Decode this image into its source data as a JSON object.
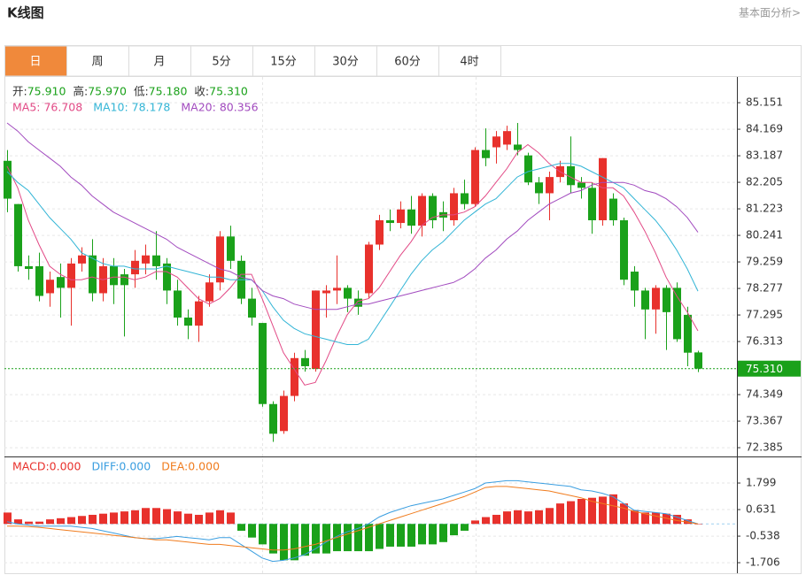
{
  "header": {
    "title": "K线图",
    "link": "基本面分析>"
  },
  "tabs": [
    "日",
    "周",
    "月",
    "5分",
    "15分",
    "30分",
    "60分",
    "4时"
  ],
  "active_tab": 0,
  "chart_data": [
    {
      "type": "candlestick",
      "up_color": "#e8312c",
      "down_color": "#1aa11a",
      "ohlc_labels": [
        {
          "label": "开:",
          "value": "75.910"
        },
        {
          "label": "高:",
          "value": "75.970"
        },
        {
          "label": "低:",
          "value": "75.180"
        },
        {
          "label": "收:",
          "value": "75.310"
        }
      ],
      "open": [
        83.0,
        81.4,
        79.1,
        79.1,
        78.1,
        78.7,
        78.3,
        79.2,
        79.5,
        78.1,
        79.1,
        78.8,
        78.8,
        79.2,
        79.5,
        79.2,
        78.2,
        77.2,
        76.9,
        77.8,
        78.5,
        80.2,
        79.3,
        77.9,
        77.0,
        74.0,
        73.0,
        74.3,
        75.7,
        75.3,
        78.1,
        78.2,
        78.3,
        77.9,
        78.1,
        79.9,
        80.8,
        80.7,
        81.2,
        80.6,
        81.7,
        81.1,
        80.8,
        81.8,
        81.4,
        83.4,
        83.5,
        83.6,
        83.6,
        83.2,
        82.2,
        81.8,
        82.4,
        82.8,
        82.2,
        82.0,
        80.8,
        81.6,
        80.8,
        78.9,
        78.2,
        77.5,
        78.3,
        78.3,
        77.3,
        75.91
      ],
      "high": [
        83.4,
        81.4,
        79.5,
        79.6,
        78.9,
        79.2,
        79.4,
        79.8,
        80.1,
        79.4,
        79.4,
        79.0,
        79.7,
        79.9,
        80.4,
        79.4,
        78.6,
        77.5,
        78.0,
        78.8,
        80.4,
        80.6,
        79.5,
        78.3,
        77.0,
        74.1,
        74.5,
        75.9,
        76.0,
        78.2,
        78.4,
        79.5,
        78.4,
        78.2,
        80.0,
        81.0,
        81.2,
        81.5,
        81.7,
        81.8,
        81.8,
        81.5,
        82.0,
        82.3,
        83.5,
        84.2,
        84.1,
        84.3,
        84.4,
        83.3,
        82.4,
        82.6,
        83.0,
        83.9,
        82.4,
        82.2,
        83.1,
        81.8,
        80.9,
        79.1,
        78.3,
        78.4,
        78.4,
        78.5,
        77.6,
        75.97
      ],
      "low": [
        81.1,
        78.9,
        78.6,
        77.8,
        77.6,
        77.2,
        76.9,
        78.9,
        77.8,
        77.8,
        77.7,
        76.5,
        78.3,
        78.8,
        78.6,
        77.7,
        76.9,
        76.4,
        76.3,
        77.6,
        78.2,
        79.0,
        77.7,
        76.9,
        73.9,
        72.6,
        72.9,
        74.1,
        75.2,
        75.2,
        77.2,
        77.7,
        77.4,
        77.3,
        77.9,
        79.7,
        80.4,
        80.5,
        80.3,
        80.2,
        80.5,
        80.4,
        80.6,
        81.2,
        81.3,
        82.8,
        82.9,
        83.4,
        83.2,
        82.1,
        81.4,
        80.8,
        82.2,
        81.8,
        81.6,
        80.3,
        80.6,
        80.6,
        78.4,
        77.6,
        76.4,
        76.6,
        76.0,
        76.3,
        75.4,
        75.18
      ],
      "close": [
        81.6,
        79.1,
        79.0,
        78.0,
        78.6,
        78.3,
        79.2,
        79.5,
        78.1,
        79.1,
        78.4,
        78.4,
        79.3,
        79.5,
        79.1,
        78.2,
        77.2,
        76.9,
        77.8,
        78.5,
        80.2,
        79.3,
        77.9,
        77.2,
        74.0,
        72.9,
        74.3,
        75.7,
        75.4,
        78.2,
        78.2,
        78.3,
        77.9,
        77.6,
        79.9,
        80.8,
        80.7,
        81.2,
        80.6,
        81.7,
        80.8,
        80.9,
        81.8,
        81.4,
        83.4,
        83.1,
        83.9,
        84.1,
        83.4,
        82.2,
        81.8,
        82.4,
        82.8,
        82.1,
        82.0,
        80.8,
        83.1,
        80.8,
        78.6,
        78.2,
        77.5,
        78.3,
        77.4,
        76.4,
        75.9,
        75.31
      ],
      "ma": [
        {
          "legend": "MA5: 76.708",
          "color": "#e24a86",
          "values": [
            82.8,
            82.0,
            80.8,
            79.9,
            79.1,
            78.8,
            78.6,
            78.6,
            78.7,
            78.6,
            78.7,
            78.7,
            78.6,
            78.7,
            78.9,
            78.9,
            78.7,
            78.3,
            77.9,
            77.7,
            77.9,
            78.3,
            78.8,
            78.8,
            77.9,
            76.9,
            75.9,
            75.3,
            74.7,
            74.8,
            75.6,
            76.5,
            77.3,
            77.8,
            77.9,
            78.3,
            78.9,
            79.5,
            80.0,
            80.6,
            80.9,
            81.0,
            81.0,
            81.1,
            81.3,
            81.7,
            82.2,
            82.7,
            83.3,
            83.6,
            83.3,
            82.9,
            82.6,
            82.4,
            82.2,
            82.2,
            82.0,
            82.0,
            81.7,
            81.1,
            80.4,
            79.6,
            78.7,
            78.0,
            77.4,
            76.708
          ]
        },
        {
          "legend": "MA10: 78.178",
          "color": "#33b5d6",
          "values": [
            82.6,
            82.2,
            81.9,
            81.4,
            80.9,
            80.5,
            80.1,
            79.6,
            79.4,
            79.2,
            79.1,
            79.1,
            79.0,
            79.0,
            79.0,
            79.1,
            79.0,
            78.9,
            78.8,
            78.7,
            78.7,
            78.6,
            78.6,
            78.6,
            78.2,
            77.6,
            77.1,
            76.8,
            76.6,
            76.5,
            76.4,
            76.3,
            76.2,
            76.2,
            76.4,
            77.0,
            77.6,
            78.2,
            78.8,
            79.3,
            79.7,
            80.0,
            80.4,
            80.8,
            81.1,
            81.4,
            81.6,
            82.0,
            82.4,
            82.6,
            82.7,
            82.8,
            82.9,
            82.9,
            82.8,
            82.6,
            82.4,
            82.2,
            82.0,
            81.6,
            81.2,
            80.8,
            80.3,
            79.7,
            79.0,
            78.178
          ]
        },
        {
          "legend": "MA20: 80.356",
          "color": "#a24bbf",
          "values": [
            84.4,
            84.1,
            83.7,
            83.4,
            83.1,
            82.8,
            82.4,
            82.1,
            81.7,
            81.4,
            81.1,
            80.9,
            80.7,
            80.5,
            80.3,
            80.1,
            79.8,
            79.6,
            79.4,
            79.2,
            79.0,
            78.9,
            78.7,
            78.6,
            78.2,
            78.0,
            77.9,
            77.7,
            77.6,
            77.5,
            77.5,
            77.5,
            77.6,
            77.7,
            77.7,
            77.8,
            77.9,
            78.0,
            78.1,
            78.2,
            78.3,
            78.4,
            78.5,
            78.7,
            79.0,
            79.4,
            79.7,
            80.1,
            80.4,
            80.8,
            81.1,
            81.4,
            81.6,
            81.8,
            81.9,
            82.1,
            82.2,
            82.2,
            82.2,
            82.1,
            81.9,
            81.8,
            81.6,
            81.3,
            80.9,
            80.356
          ]
        }
      ],
      "last_price": {
        "value": 75.31,
        "label": "75.310"
      },
      "last_color": "#1aa11a",
      "ylim": [
        72.06,
        86.07
      ],
      "yticks": [
        85.151,
        84.169,
        83.187,
        82.205,
        81.223,
        80.241,
        79.259,
        78.277,
        77.295,
        76.313,
        74.349,
        73.367,
        72.385
      ],
      "grid": true
    },
    {
      "type": "macd",
      "up_color": "#e8312c",
      "down_color": "#1aa11a",
      "histogram": {
        "legend": "MACD:0.000",
        "color": "#e8312c",
        "values": [
          0.5,
          0.2,
          0.1,
          0.1,
          0.2,
          0.25,
          0.3,
          0.35,
          0.4,
          0.45,
          0.5,
          0.55,
          0.6,
          0.7,
          0.7,
          0.65,
          0.55,
          0.45,
          0.4,
          0.5,
          0.6,
          0.5,
          -0.3,
          -0.6,
          -0.9,
          -1.3,
          -1.6,
          -1.6,
          -1.4,
          -1.3,
          -1.3,
          -1.2,
          -1.2,
          -1.2,
          -1.2,
          -1.1,
          -1.0,
          -1.0,
          -1.0,
          -0.9,
          -0.9,
          -0.8,
          -0.5,
          -0.3,
          0.15,
          0.3,
          0.4,
          0.55,
          0.6,
          0.55,
          0.6,
          0.7,
          0.9,
          1.0,
          1.1,
          1.15,
          1.2,
          1.3,
          0.9,
          0.6,
          0.5,
          0.5,
          0.45,
          0.4,
          0.2,
          0
        ]
      },
      "series": [
        {
          "legend": "DIFF:0.000",
          "color": "#3a9ee0",
          "values": [
            0.1,
            0.0,
            -0.05,
            -0.1,
            -0.1,
            -0.1,
            -0.1,
            -0.15,
            -0.2,
            -0.3,
            -0.4,
            -0.5,
            -0.6,
            -0.65,
            -0.65,
            -0.6,
            -0.55,
            -0.6,
            -0.65,
            -0.7,
            -0.6,
            -0.6,
            -0.9,
            -1.2,
            -1.5,
            -1.65,
            -1.6,
            -1.5,
            -1.35,
            -1.1,
            -0.8,
            -0.55,
            -0.35,
            -0.2,
            0.0,
            0.3,
            0.5,
            0.65,
            0.8,
            0.9,
            1.0,
            1.1,
            1.25,
            1.4,
            1.55,
            1.8,
            1.85,
            1.9,
            1.9,
            1.85,
            1.8,
            1.75,
            1.7,
            1.65,
            1.5,
            1.45,
            1.35,
            1.2,
            0.9,
            0.6,
            0.55,
            0.5,
            0.45,
            0.3,
            0.15,
            0
          ]
        },
        {
          "legend": "DEA:0.000",
          "color": "#f07c1e",
          "values": [
            -0.1,
            -0.1,
            -0.12,
            -0.15,
            -0.2,
            -0.25,
            -0.3,
            -0.35,
            -0.4,
            -0.45,
            -0.5,
            -0.55,
            -0.6,
            -0.65,
            -0.7,
            -0.7,
            -0.75,
            -0.8,
            -0.85,
            -0.9,
            -0.9,
            -0.95,
            -1.0,
            -1.05,
            -1.1,
            -1.15,
            -1.15,
            -1.1,
            -1.0,
            -0.9,
            -0.75,
            -0.6,
            -0.45,
            -0.3,
            -0.15,
            0.0,
            0.15,
            0.3,
            0.45,
            0.6,
            0.75,
            0.9,
            1.05,
            1.2,
            1.4,
            1.6,
            1.65,
            1.65,
            1.6,
            1.55,
            1.5,
            1.45,
            1.35,
            1.25,
            1.15,
            1.0,
            0.9,
            0.8,
            0.7,
            0.55,
            0.45,
            0.35,
            0.25,
            0.15,
            0.08,
            0
          ]
        }
      ],
      "ylim": [
        -2.17,
        2.89
      ],
      "yticks": [
        1.799,
        0.631,
        -0.538,
        -1.706
      ],
      "grid": true
    }
  ]
}
